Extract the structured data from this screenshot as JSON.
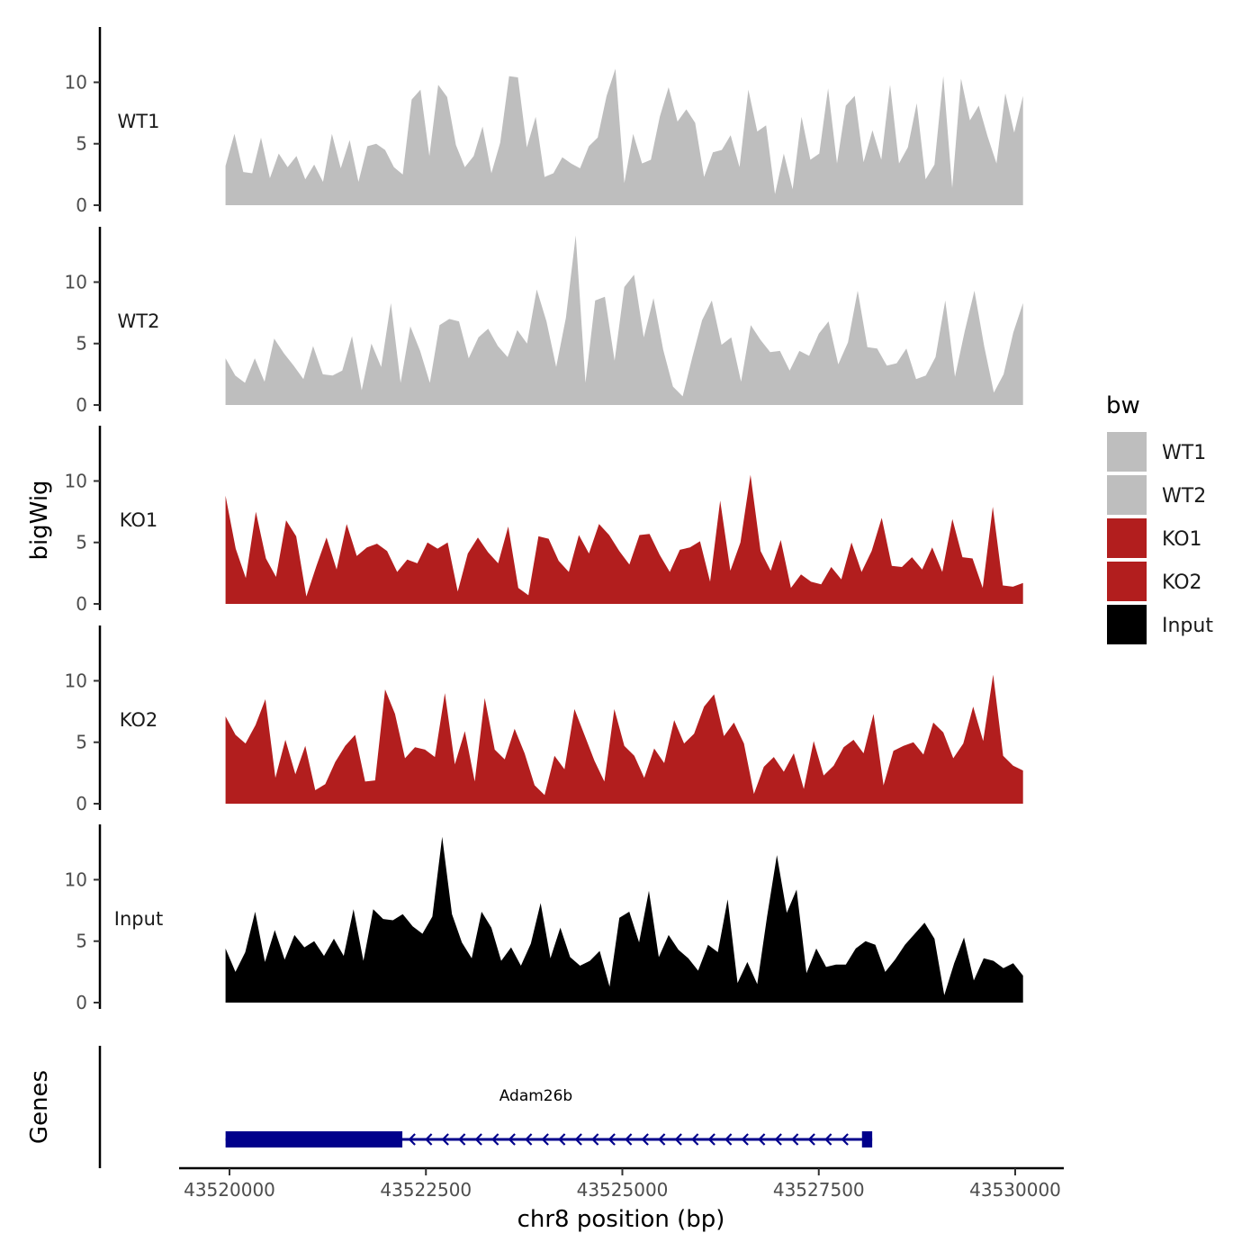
{
  "chart_data": {
    "type": "area",
    "x_axis": {
      "title": "chr8 position (bp)",
      "range": [
        43519500,
        43530600
      ],
      "ticks": [
        43520000,
        43522500,
        43525000,
        43527500,
        43530000
      ],
      "tick_labels": [
        "43520000",
        "43522500",
        "43525000",
        "43527500",
        "43530000"
      ]
    },
    "y_axis": {
      "title": "bigWig",
      "range": [
        0,
        14.5
      ],
      "ticks": [
        0,
        5,
        10
      ],
      "tick_labels": [
        "0",
        "5",
        "10"
      ]
    },
    "legend": {
      "title": "bw",
      "position": "right",
      "entries": [
        {
          "label": "WT1",
          "color": "#bebebe"
        },
        {
          "label": "WT2",
          "color": "#bebebe"
        },
        {
          "label": "KO1",
          "color": "#b21e1e"
        },
        {
          "label": "KO2",
          "color": "#b21e1e"
        },
        {
          "label": "Input",
          "color": "#000000"
        }
      ]
    },
    "series_x_range": [
      43519950,
      43530100
    ],
    "series": [
      {
        "name": "WT1",
        "color": "#bebebe",
        "values": [
          3.2,
          5.8,
          2.7,
          2.6,
          5.5,
          2.2,
          4.2,
          3.1,
          4.0,
          2.1,
          3.3,
          1.9,
          5.8,
          3.0,
          5.3,
          1.9,
          4.8,
          5.0,
          4.5,
          3.1,
          2.5,
          8.6,
          9.4,
          4.0,
          9.8,
          8.8,
          4.9,
          3.1,
          4.0,
          6.4,
          2.6,
          5.1,
          10.5,
          10.4,
          4.7,
          7.2,
          2.3,
          2.6,
          3.9,
          3.4,
          3.0,
          4.8,
          5.5,
          8.9,
          11.1,
          1.8,
          5.8,
          3.4,
          3.7,
          7.2,
          9.6,
          6.8,
          7.8,
          6.7,
          2.3,
          4.3,
          4.5,
          5.7,
          3.1,
          9.4,
          6.0,
          6.5,
          0.9,
          4.2,
          1.3,
          7.2,
          3.7,
          4.2,
          9.5,
          3.4,
          8.1,
          8.9,
          3.5,
          6.1,
          3.7,
          9.8,
          3.4,
          4.7,
          8.3,
          2.1,
          3.3,
          10.5,
          1.4,
          10.3,
          6.9,
          8.1,
          5.6,
          3.4,
          9.1,
          5.9,
          8.9
        ]
      },
      {
        "name": "WT2",
        "color": "#bebebe",
        "values": [
          3.8,
          2.4,
          1.8,
          3.8,
          1.9,
          5.4,
          4.2,
          3.2,
          2.1,
          4.8,
          2.5,
          2.4,
          2.8,
          5.6,
          1.2,
          5.0,
          3.1,
          8.3,
          1.8,
          6.4,
          4.4,
          1.8,
          6.5,
          7.0,
          6.8,
          3.8,
          5.5,
          6.2,
          4.8,
          3.9,
          6.1,
          5.0,
          9.4,
          6.8,
          3.1,
          7.1,
          13.8,
          1.8,
          8.5,
          8.8,
          3.6,
          9.6,
          10.6,
          5.5,
          8.7,
          4.5,
          1.5,
          0.7,
          3.9,
          6.9,
          8.5,
          4.9,
          5.5,
          1.9,
          6.5,
          5.3,
          4.3,
          4.4,
          2.8,
          4.4,
          4.0,
          5.8,
          6.8,
          3.3,
          5.1,
          9.3,
          4.7,
          4.6,
          3.2,
          3.4,
          4.6,
          2.1,
          2.4,
          3.9,
          8.5,
          2.3,
          6.0,
          9.3,
          4.8,
          1.0,
          2.5,
          5.9,
          8.3
        ]
      },
      {
        "name": "KO1",
        "color": "#b21e1e",
        "values": [
          8.8,
          4.5,
          2.1,
          7.5,
          3.7,
          2.2,
          6.8,
          5.5,
          0.6,
          3.1,
          5.4,
          2.8,
          6.5,
          3.9,
          4.6,
          4.9,
          4.3,
          2.6,
          3.6,
          3.3,
          5.0,
          4.5,
          5.0,
          1.0,
          4.1,
          5.4,
          4.2,
          3.3,
          6.3,
          1.3,
          0.7,
          5.5,
          5.3,
          3.5,
          2.6,
          5.6,
          4.1,
          6.5,
          5.6,
          4.3,
          3.2,
          5.6,
          5.7,
          4.0,
          2.6,
          4.4,
          4.6,
          5.1,
          1.8,
          8.4,
          2.7,
          5.0,
          10.5,
          4.3,
          2.7,
          5.2,
          1.3,
          2.4,
          1.8,
          1.6,
          3.0,
          2.0,
          5.0,
          2.6,
          4.3,
          7.0,
          3.1,
          3.0,
          3.8,
          2.8,
          4.6,
          2.6,
          6.9,
          3.8,
          3.7,
          1.3,
          7.9,
          1.5,
          1.4,
          1.7
        ]
      },
      {
        "name": "KO2",
        "color": "#b21e1e",
        "values": [
          7.1,
          5.6,
          4.9,
          6.4,
          8.5,
          2.1,
          5.2,
          2.4,
          4.7,
          1.1,
          1.6,
          3.4,
          4.7,
          5.6,
          1.8,
          1.9,
          9.3,
          7.3,
          3.7,
          4.6,
          4.4,
          3.8,
          9.0,
          3.2,
          5.9,
          1.8,
          8.6,
          4.4,
          3.6,
          6.1,
          4.1,
          1.5,
          0.7,
          3.9,
          2.8,
          7.7,
          5.6,
          3.5,
          1.8,
          7.7,
          4.7,
          3.9,
          2.1,
          4.5,
          3.3,
          6.8,
          4.9,
          5.7,
          7.9,
          8.9,
          5.5,
          6.6,
          4.9,
          0.8,
          3.0,
          3.8,
          2.6,
          4.1,
          1.2,
          5.1,
          2.3,
          3.1,
          4.6,
          5.2,
          4.1,
          7.3,
          1.5,
          4.3,
          4.7,
          5.0,
          4.0,
          6.6,
          5.8,
          3.7,
          4.9,
          7.9,
          5.1,
          10.5,
          3.9,
          3.1,
          2.7
        ]
      },
      {
        "name": "Input",
        "color": "#000000",
        "values": [
          4.4,
          2.5,
          4.1,
          7.4,
          3.3,
          5.9,
          3.5,
          5.5,
          4.5,
          5.0,
          3.8,
          5.2,
          3.8,
          7.6,
          3.4,
          7.6,
          6.8,
          6.7,
          7.2,
          6.2,
          5.6,
          7.0,
          13.5,
          7.2,
          4.9,
          3.6,
          7.4,
          6.1,
          3.4,
          4.5,
          3.0,
          4.8,
          8.1,
          3.6,
          6.1,
          3.7,
          3.0,
          3.4,
          4.2,
          1.3,
          6.9,
          7.4,
          4.9,
          9.1,
          3.7,
          5.5,
          4.3,
          3.6,
          2.6,
          4.7,
          4.1,
          8.4,
          1.6,
          3.3,
          1.5,
          7.0,
          12.0,
          7.3,
          9.2,
          2.4,
          4.4,
          2.9,
          3.1,
          3.1,
          4.4,
          5.0,
          4.7,
          2.5,
          3.5,
          4.7,
          5.6,
          6.5,
          5.2,
          0.6,
          3.2,
          5.3,
          1.8,
          3.6,
          3.4,
          2.8,
          3.2,
          2.2
        ]
      }
    ],
    "genes_track": {
      "title": "Genes",
      "genes": [
        {
          "name": "Adam26b",
          "start": 43519950,
          "end": 43528180,
          "strand": "-",
          "thick_start": 43519950,
          "thick_end": 43522200,
          "exon2_start": 43528050,
          "exon2_end": 43528180,
          "color": "#00008b"
        }
      ]
    }
  }
}
